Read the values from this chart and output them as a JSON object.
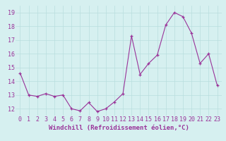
{
  "x": [
    0,
    1,
    2,
    3,
    4,
    5,
    6,
    7,
    8,
    9,
    10,
    11,
    12,
    13,
    14,
    15,
    16,
    17,
    18,
    19,
    20,
    21,
    22,
    23
  ],
  "y": [
    14.6,
    13.0,
    12.9,
    13.1,
    12.9,
    13.0,
    12.0,
    11.85,
    12.45,
    11.8,
    12.0,
    12.5,
    13.1,
    17.3,
    14.5,
    15.3,
    15.9,
    18.1,
    19.0,
    18.7,
    17.5,
    15.3,
    16.0,
    13.7
  ],
  "xlim": [
    -0.5,
    23.5
  ],
  "ylim": [
    11.5,
    19.5
  ],
  "yticks": [
    12,
    13,
    14,
    15,
    16,
    17,
    18,
    19
  ],
  "xtick_labels": [
    "0",
    "1",
    "2",
    "3",
    "4",
    "5",
    "6",
    "7",
    "8",
    "9",
    "10",
    "11",
    "12",
    "13",
    "14",
    "15",
    "16",
    "17",
    "18",
    "19",
    "20",
    "21",
    "22",
    "23"
  ],
  "xlabel": "Windchill (Refroidissement éolien,°C)",
  "line_color": "#993399",
  "marker": "+",
  "bg_color": "#d6f0f0",
  "grid_color": "#b8dede",
  "label_fontsize": 6.5,
  "tick_fontsize": 6.0
}
